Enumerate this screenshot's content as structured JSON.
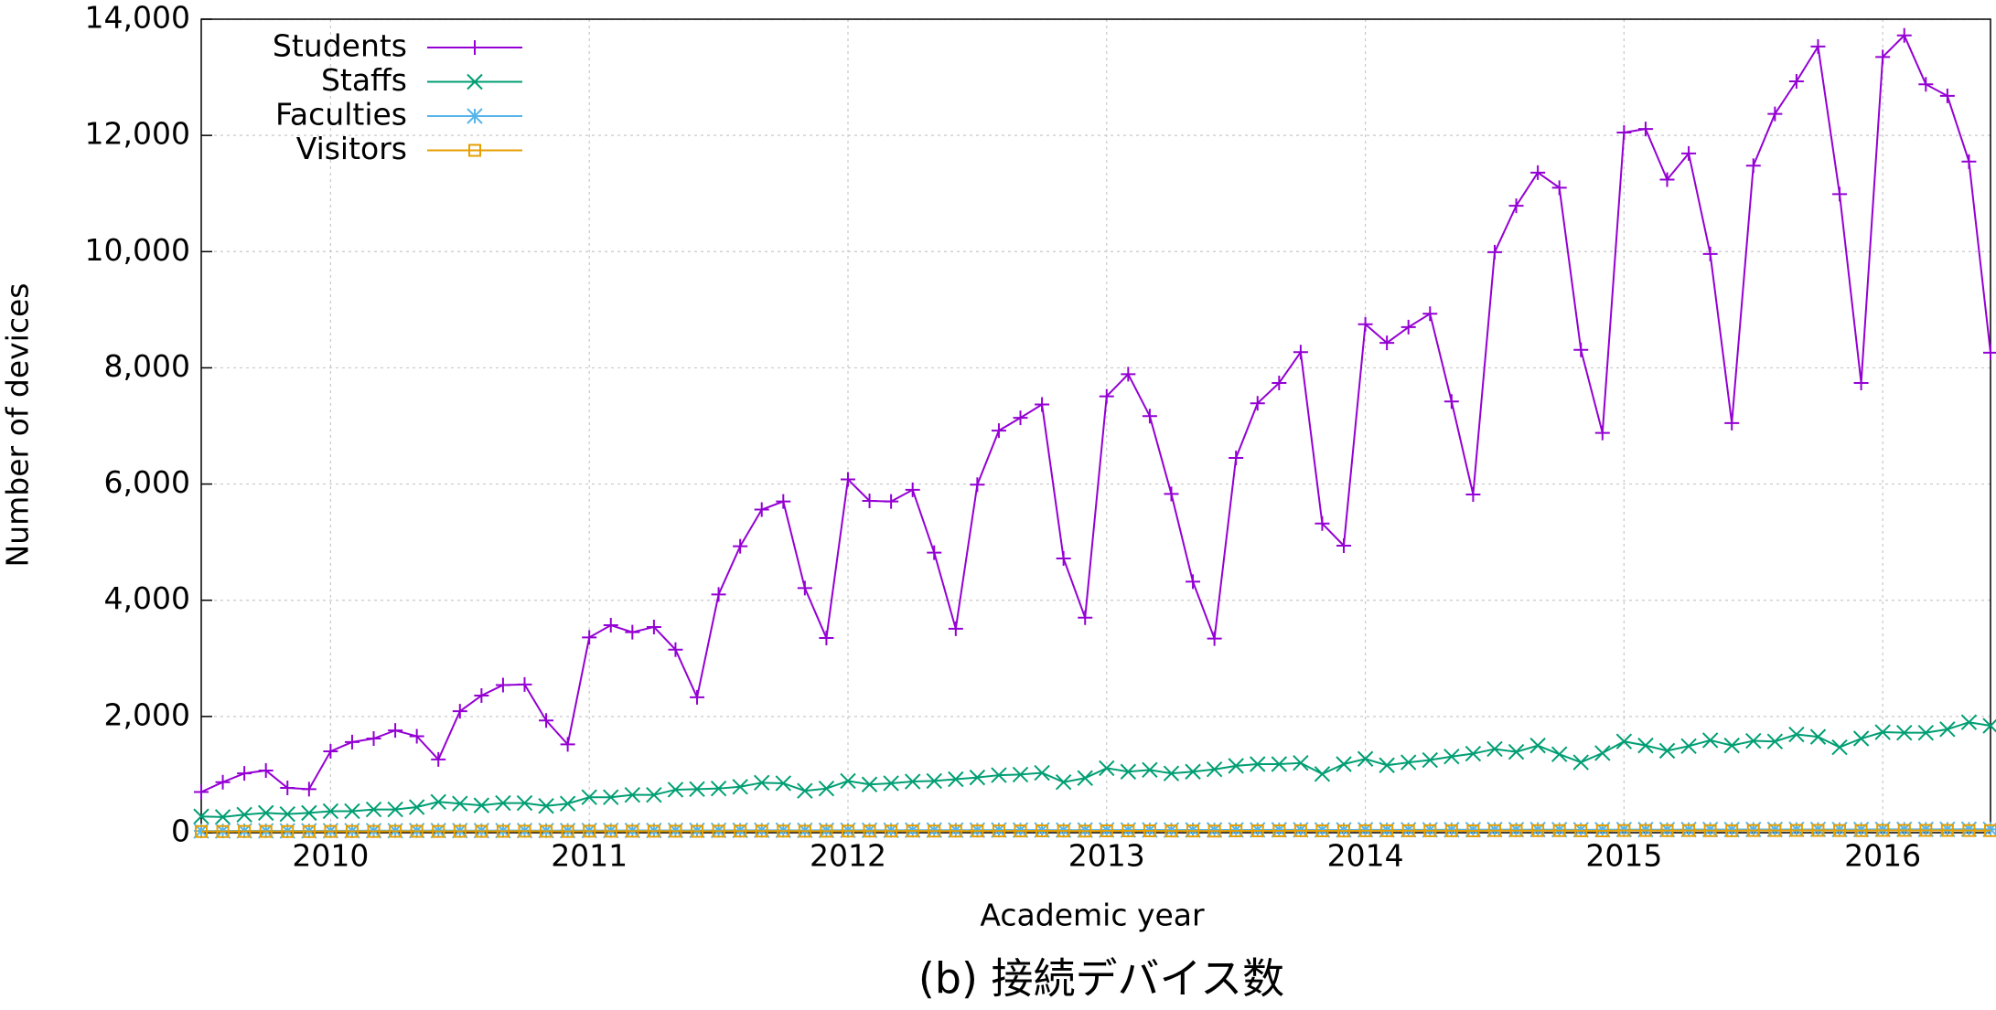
{
  "chart_data": {
    "type": "line",
    "caption": "(b) 接続デバイス数",
    "x_label": "Academic year",
    "y_label": "Number of devices",
    "categories": [
      null,
      null,
      null,
      null,
      null,
      null,
      "2010",
      null,
      null,
      null,
      null,
      null,
      null,
      null,
      null,
      null,
      null,
      null,
      "2011",
      null,
      null,
      null,
      null,
      null,
      null,
      null,
      null,
      null,
      null,
      null,
      "2012",
      null,
      null,
      null,
      null,
      null,
      null,
      null,
      null,
      null,
      null,
      null,
      "2013",
      null,
      null,
      null,
      null,
      null,
      null,
      null,
      null,
      null,
      null,
      null,
      "2014",
      null,
      null,
      null,
      null,
      null,
      null,
      null,
      null,
      null,
      null,
      null,
      "2015",
      null,
      null,
      null,
      null,
      null,
      null,
      null,
      null,
      null,
      null,
      null,
      "2016",
      null,
      null,
      null,
      null,
      null
    ],
    "ylim": [
      0,
      14000
    ],
    "yticks": [
      0,
      {
        "value": 2000,
        "label": "2,000"
      },
      {
        "value": 4000,
        "label": "4,000"
      },
      {
        "value": 6000,
        "label": "6,000"
      },
      {
        "value": 8000,
        "label": "8,000"
      },
      {
        "value": 10000,
        "label": "10,000"
      },
      {
        "value": 12000,
        "label": "12,000"
      },
      {
        "value": 14000,
        "label": "14,000"
      }
    ],
    "grid": true,
    "legend": "upper left",
    "series": [
      {
        "name": "Students",
        "color": "#9400d3",
        "marker": "plus",
        "values": [
          700,
          870,
          1020,
          1070,
          770,
          750,
          1400,
          1560,
          1620,
          1760,
          1660,
          1260,
          2090,
          2360,
          2540,
          2550,
          1930,
          1520,
          3360,
          3570,
          3450,
          3540,
          3150,
          2330,
          4100,
          4930,
          5560,
          5700,
          4210,
          3350,
          6080,
          5710,
          5700,
          5900,
          4820,
          3510,
          5990,
          6920,
          7140,
          7370,
          4720,
          3700,
          7510,
          7890,
          7170,
          5830,
          4320,
          3340,
          6450,
          7390,
          7740,
          8270,
          5320,
          4940,
          8750,
          8430,
          8700,
          8930,
          7420,
          5820,
          9990,
          10790,
          11360,
          11100,
          8310,
          6880,
          12050,
          12110,
          11240,
          11690,
          9960,
          7050,
          11480,
          12370,
          12930,
          13530,
          10990,
          7740,
          13350,
          13720,
          12880,
          12680,
          11550,
          8260
        ]
      },
      {
        "name": "Staffs",
        "color": "#009e73",
        "marker": "cross",
        "values": [
          280,
          270,
          310,
          340,
          320,
          340,
          370,
          370,
          400,
          400,
          440,
          530,
          500,
          470,
          510,
          510,
          460,
          500,
          610,
          610,
          650,
          650,
          740,
          750,
          760,
          790,
          860,
          850,
          720,
          760,
          890,
          830,
          850,
          880,
          890,
          920,
          950,
          990,
          1000,
          1030,
          870,
          940,
          1110,
          1050,
          1080,
          1020,
          1050,
          1090,
          1150,
          1180,
          1180,
          1200,
          1010,
          1180,
          1270,
          1160,
          1210,
          1250,
          1310,
          1360,
          1440,
          1390,
          1500,
          1350,
          1210,
          1370,
          1570,
          1500,
          1410,
          1490,
          1590,
          1500,
          1580,
          1570,
          1690,
          1650,
          1470,
          1620,
          1730,
          1720,
          1720,
          1780,
          1900,
          1840
        ]
      },
      {
        "name": "Faculties",
        "color": "#56b4e9",
        "marker": "star",
        "values": [
          30,
          30,
          32,
          33,
          31,
          32,
          34,
          34,
          35,
          35,
          36,
          37,
          36,
          36,
          37,
          37,
          36,
          37,
          38,
          38,
          39,
          39,
          40,
          40,
          40,
          41,
          42,
          42,
          40,
          41,
          42,
          42,
          42,
          43,
          43,
          44,
          44,
          45,
          45,
          46,
          44,
          45,
          46,
          46,
          47,
          46,
          47,
          47,
          48,
          48,
          49,
          49,
          47,
          48,
          50,
          49,
          50,
          50,
          51,
          52,
          53,
          52,
          53,
          52,
          50,
          52,
          54,
          53,
          52,
          53,
          55,
          54,
          55,
          55,
          56,
          56,
          54,
          55,
          57,
          57,
          57,
          58,
          59,
          58
        ]
      },
      {
        "name": "Visitors",
        "color": "#e69f00",
        "marker": "square",
        "values": [
          20,
          20,
          21,
          21,
          20,
          20,
          22,
          22,
          22,
          23,
          23,
          22,
          23,
          24,
          24,
          25,
          23,
          22,
          25,
          25,
          26,
          26,
          25,
          24,
          26,
          27,
          28,
          28,
          26,
          25,
          28,
          28,
          28,
          29,
          28,
          27,
          29,
          30,
          30,
          31,
          29,
          28,
          31,
          31,
          31,
          30,
          29,
          28,
          31,
          32,
          32,
          33,
          31,
          30,
          33,
          33,
          34,
          34,
          33,
          31,
          35,
          36,
          36,
          36,
          34,
          32,
          37,
          37,
          36,
          37,
          35,
          33,
          37,
          38,
          39,
          39,
          37,
          35,
          39,
          40,
          39,
          39,
          38,
          36
        ]
      }
    ]
  }
}
